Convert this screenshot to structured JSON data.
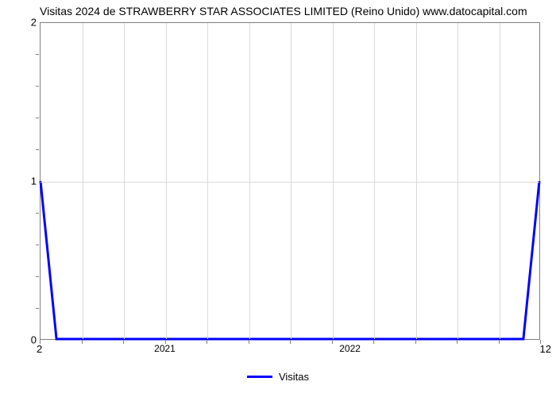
{
  "chart": {
    "type": "line",
    "title": "Visitas 2024 de STRAWBERRY STAR ASSOCIATES LIMITED (Reino Unido) www.datocapital.com",
    "title_color": "#000000",
    "title_fontsize": 14,
    "background_color": "#ffffff",
    "plot_border_color": "#808080",
    "grid_color": "#d9d9d9",
    "line_color": "#0000ff",
    "line_width": 3,
    "y_axis": {
      "min": 0,
      "max": 2,
      "major_ticks": [
        0,
        1,
        2
      ],
      "minor_tick_count_between": 4,
      "label_fontsize": 13
    },
    "x_axis": {
      "major_tick_labels": [
        "2021",
        "2022"
      ],
      "major_tick_positions": [
        0.25,
        0.62
      ],
      "minor_ticks_per_segment": 12,
      "extra_left_label": "2",
      "extra_right_label": "12",
      "label_fontsize": 12
    },
    "data": {
      "x_norm": [
        0.0,
        0.032,
        0.968,
        1.0
      ],
      "y_values": [
        1.0,
        0.0,
        0.0,
        1.0
      ]
    },
    "legend": {
      "label": "Visitas",
      "position": "bottom-center",
      "line_color": "#0000ff"
    }
  }
}
